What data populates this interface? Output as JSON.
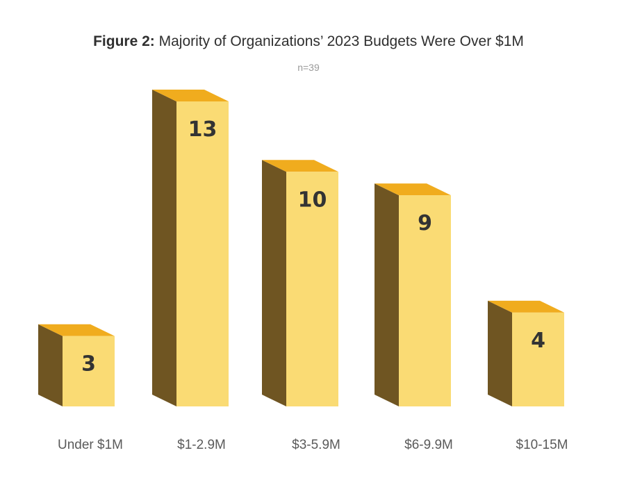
{
  "header": {
    "title_lead": "Figure 2:",
    "title_rest": " Majority of Organizations’ 2023 Budgets Were Over $1M",
    "subtitle": "n=39"
  },
  "colors": {
    "front": "#fadb74",
    "top": "#f0ac1e",
    "side": "#6f5522",
    "label": "#333333",
    "category": "#5a5a5a"
  },
  "chart_data": {
    "type": "bar",
    "title": "Figure 2: Majority of Organizations’ 2023 Budgets Were Over $1M",
    "subtitle": "n=39",
    "categories": [
      "Under $1M",
      "$1-2.9M",
      "$3-5.9M",
      "$6-9.9M",
      "$10-15M"
    ],
    "values": [
      3,
      13,
      10,
      9,
      4
    ],
    "xlabel": "",
    "ylabel": "",
    "grid": false,
    "legend": "none",
    "style": "3d-column"
  }
}
